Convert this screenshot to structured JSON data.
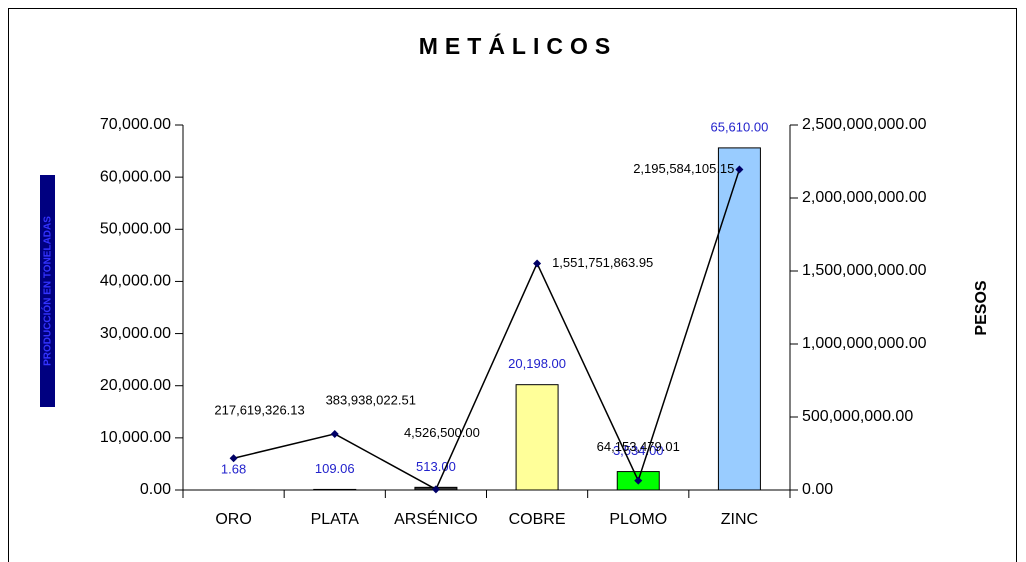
{
  "chart_data": {
    "type": "bar_line",
    "title": "METÁLICOS",
    "ylabel": "PRODUCCIÓN EN TONELADAS",
    "y2label": "PESOS",
    "categories": [
      "ORO",
      "PLATA",
      "ARSÉNICO",
      "COBRE",
      "PLOMO",
      "ZINC"
    ],
    "series": [
      {
        "name": "PRODUCCIÓN EN TONELADAS",
        "type": "bar",
        "colors": [
          "#ffffff",
          "#ffffff",
          "#333333",
          "#ffff99",
          "#00ff00",
          "#99ccff"
        ],
        "values": [
          1.68,
          109.06,
          513.0,
          20198.0,
          3534.0,
          65610.0
        ],
        "value_labels": [
          "1.68",
          "109.06",
          "513.00",
          "20,198.00",
          "3,534.00",
          "65,610.00"
        ]
      },
      {
        "name": "PESOS",
        "type": "line",
        "axis": "y2",
        "color": "#000000",
        "marker_color": "#000066",
        "values": [
          217619326.13,
          383938022.51,
          4526500.0,
          1551751863.95,
          64153479.01,
          2195584105.15
        ],
        "value_labels": [
          "217,619,326.13",
          "383,938,022.51",
          "4,526,500.00",
          "1,551,751,863.95",
          "64,153,479.01",
          "2,195,584,105.15"
        ]
      }
    ],
    "ylim": [
      0,
      70000
    ],
    "yticks": [
      {
        "value": 0,
        "label": "0.00"
      },
      {
        "value": 10000,
        "label": "10,000.00"
      },
      {
        "value": 20000,
        "label": "20,000.00"
      },
      {
        "value": 30000,
        "label": "30,000.00"
      },
      {
        "value": 40000,
        "label": "40,000.00"
      },
      {
        "value": 50000,
        "label": "50,000.00"
      },
      {
        "value": 60000,
        "label": "60,000.00"
      },
      {
        "value": 70000,
        "label": "70,000.00"
      }
    ],
    "y2lim": [
      0,
      2500000000
    ],
    "y2ticks": [
      {
        "value": 0,
        "label": "0.00"
      },
      {
        "value": 500000000,
        "label": "500,000,000.00"
      },
      {
        "value": 1000000000,
        "label": "1,000,000,000.00"
      },
      {
        "value": 1500000000,
        "label": "1,500,000,000.00"
      },
      {
        "value": 2000000000,
        "label": "2,000,000,000.00"
      },
      {
        "value": 2500000000,
        "label": "2,500,000,000.00"
      }
    ]
  }
}
